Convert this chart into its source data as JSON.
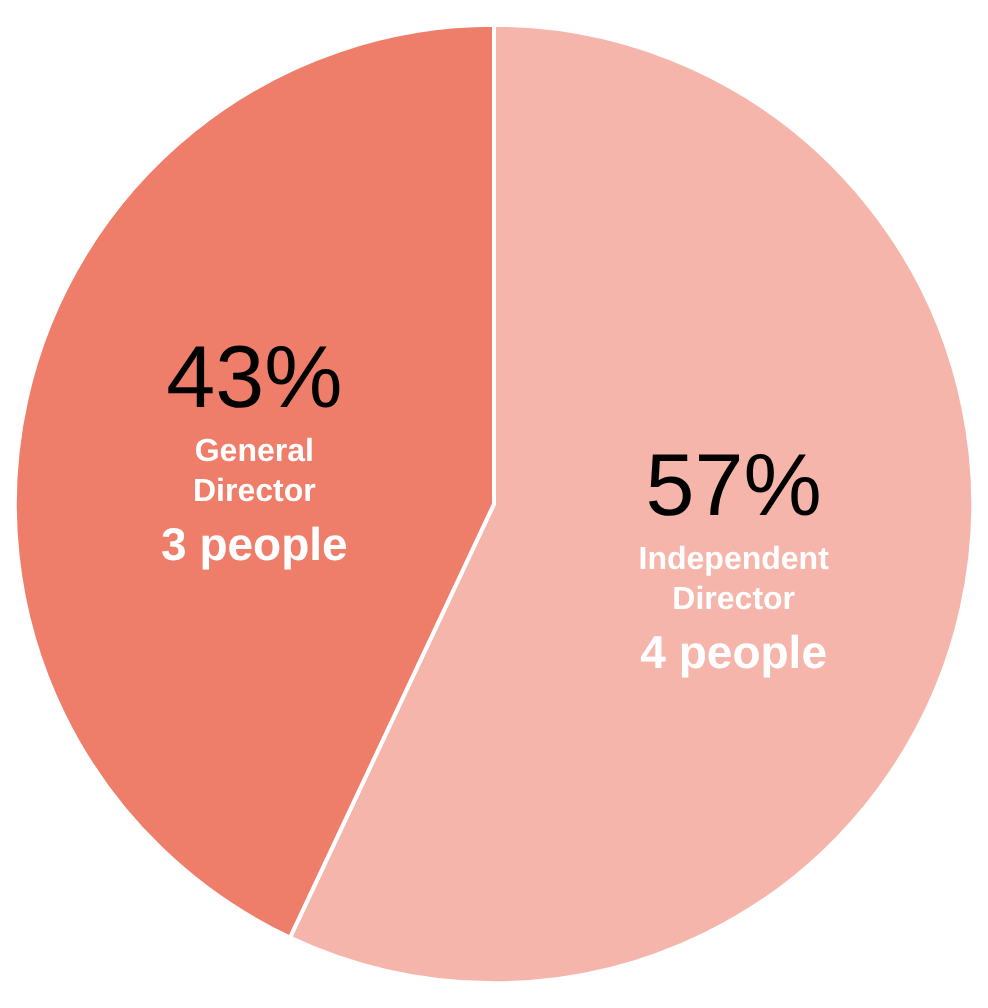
{
  "chart_data": {
    "type": "pie",
    "categories": [
      "Independent Director",
      "General Director"
    ],
    "values": [
      57,
      43
    ],
    "colors": [
      "#f5b5aa",
      "#ee7d6a"
    ],
    "value_labels": [
      "57%",
      "43%"
    ],
    "legend": false,
    "annotations": [
      "4 people",
      "3 people"
    ]
  }
}
